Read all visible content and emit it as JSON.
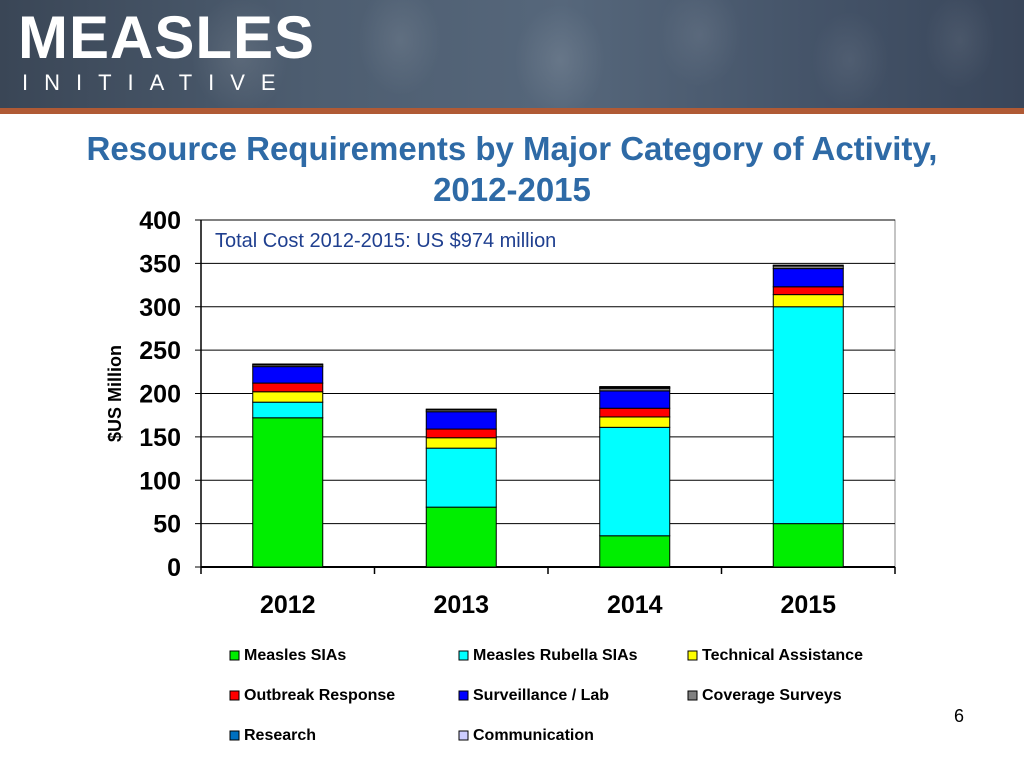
{
  "logo": {
    "main": "MEASLES",
    "sub": "INITIATIVE"
  },
  "title_line1": "Resource Requirements by Major Category of Activity,",
  "title_line2": "2012-2015",
  "slide_number": "6",
  "colors": {
    "title": "#2e6aa6",
    "accent_bar": "#b05a35",
    "banner": "#4d5d70"
  },
  "chart_data": {
    "type": "bar",
    "stacked": true,
    "title": "",
    "annotation": "Total Cost 2012-2015: US $974 million",
    "xlabel": "",
    "ylabel": "$US Million",
    "ylim": [
      0,
      400
    ],
    "yticks": [
      0,
      50,
      100,
      150,
      200,
      250,
      300,
      350,
      400
    ],
    "categories": [
      "2012",
      "2013",
      "2014",
      "2015"
    ],
    "grid": "horizontal",
    "legend_position": "bottom",
    "series": [
      {
        "name": "Measles SIAs",
        "color": "#00ee00",
        "values": [
          172,
          69,
          36,
          50
        ]
      },
      {
        "name": "Measles Rubella SIAs",
        "color": "#00ffff",
        "values": [
          18,
          68,
          125,
          250
        ]
      },
      {
        "name": "Technical Assistance",
        "color": "#ffff00",
        "values": [
          12,
          12,
          12,
          14
        ]
      },
      {
        "name": "Outbreak Response",
        "color": "#ff0000",
        "values": [
          10,
          10,
          10,
          9
        ]
      },
      {
        "name": "Surveillance / Lab",
        "color": "#0000ff",
        "values": [
          19,
          20,
          20,
          21
        ]
      },
      {
        "name": "Coverage Surveys",
        "color": "#808080",
        "values": [
          2,
          2,
          3,
          3
        ]
      },
      {
        "name": "Research",
        "color": "#0070c0",
        "values": [
          1,
          1,
          1,
          1
        ]
      },
      {
        "name": "Communication",
        "color": "#ccccff",
        "values": [
          0,
          0,
          1,
          0
        ]
      }
    ]
  }
}
